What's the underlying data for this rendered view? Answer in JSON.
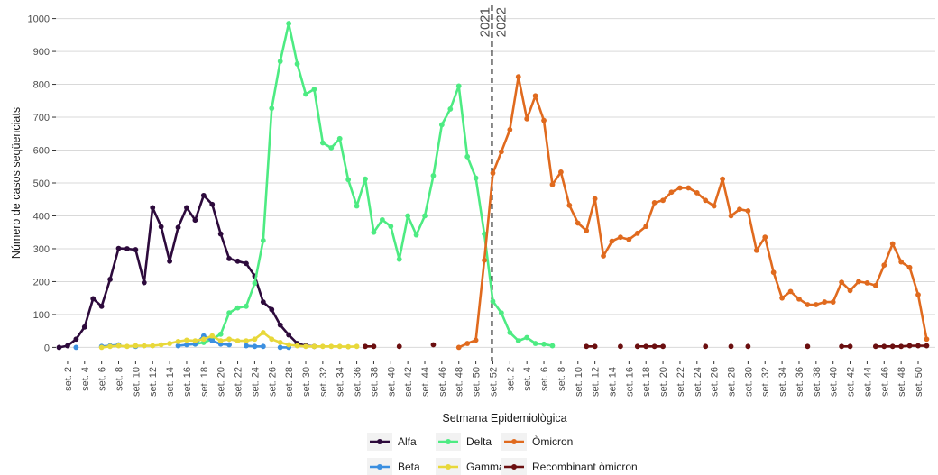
{
  "chart_data": {
    "type": "line",
    "xlabel": "Setmana Epidemiològica",
    "ylabel": "Número de casos seqüenciats",
    "ylim": [
      -40,
      1040
    ],
    "yticks": [
      0,
      100,
      200,
      300,
      400,
      500,
      600,
      700,
      800,
      900,
      1000
    ],
    "grid": true,
    "legend_position": "bottom",
    "x_categories": [
      "set. 1",
      "set. 2",
      "set. 3",
      "set. 4",
      "set. 5",
      "set. 6",
      "set. 7",
      "set. 8",
      "set. 9",
      "set. 10",
      "set. 11",
      "set. 12",
      "set. 13",
      "set. 14",
      "set. 15",
      "set. 16",
      "set. 17",
      "set. 18",
      "set. 19",
      "set. 20",
      "set. 21",
      "set. 22",
      "set. 23",
      "set. 24",
      "set. 25",
      "set. 26",
      "set. 27",
      "set. 28",
      "set. 29",
      "set. 30",
      "set. 31",
      "set. 32",
      "set. 33",
      "set. 34",
      "set. 35",
      "set. 36",
      "set. 37",
      "set. 38",
      "set. 39",
      "set. 40",
      "set. 41",
      "set. 42",
      "set. 43",
      "set. 44",
      "set. 45",
      "set. 46",
      "set. 47",
      "set. 48",
      "set. 49",
      "set. 50",
      "set. 51",
      "set. 52",
      "set. 1",
      "set. 2",
      "set. 3",
      "set. 4",
      "set. 5",
      "set. 6",
      "set. 7",
      "set. 8",
      "set. 9",
      "set. 10",
      "set. 11",
      "set. 12",
      "set. 13",
      "set. 14",
      "set. 15",
      "set. 16",
      "set. 17",
      "set. 18",
      "set. 19",
      "set. 20",
      "set. 21",
      "set. 22",
      "set. 23",
      "set. 24",
      "set. 25",
      "set. 26",
      "set. 27",
      "set. 28",
      "set. 29",
      "set. 30",
      "set. 31",
      "set. 32",
      "set. 33",
      "set. 34",
      "set. 35",
      "set. 36",
      "set. 37",
      "set. 38",
      "set. 39",
      "set. 40",
      "set. 41",
      "set. 42",
      "set. 43",
      "set. 44",
      "set. 45",
      "set. 46",
      "set. 47",
      "set. 48",
      "set. 49",
      "set. 50"
    ],
    "x_tick_labels": [
      {
        "category": 1,
        "label": "set. 2"
      },
      {
        "category": 3,
        "label": "set. 4"
      },
      {
        "category": 5,
        "label": "set. 6"
      },
      {
        "category": 7,
        "label": "set. 8"
      },
      {
        "category": 9,
        "label": "set. 10"
      },
      {
        "category": 11,
        "label": "set. 12"
      },
      {
        "category": 13,
        "label": "set. 14"
      },
      {
        "category": 15,
        "label": "set. 16"
      },
      {
        "category": 17,
        "label": "set. 18"
      },
      {
        "category": 19,
        "label": "set. 20"
      },
      {
        "category": 21,
        "label": "set. 22"
      },
      {
        "category": 23,
        "label": "set. 24"
      },
      {
        "category": 25,
        "label": "set. 26"
      },
      {
        "category": 27,
        "label": "set. 28"
      },
      {
        "category": 29,
        "label": "set. 30"
      },
      {
        "category": 31,
        "label": "set. 32"
      },
      {
        "category": 33,
        "label": "set. 34"
      },
      {
        "category": 35,
        "label": "set. 36"
      },
      {
        "category": 37,
        "label": "set. 38"
      },
      {
        "category": 39,
        "label": "set. 40"
      },
      {
        "category": 41,
        "label": "set. 42"
      },
      {
        "category": 43,
        "label": "set. 44"
      },
      {
        "category": 45,
        "label": "set. 46"
      },
      {
        "category": 47,
        "label": "set. 48"
      },
      {
        "category": 49,
        "label": "set. 50"
      },
      {
        "category": 51,
        "label": "set. 52"
      },
      {
        "category": 53,
        "label": "set. 2"
      },
      {
        "category": 55,
        "label": "set. 4"
      },
      {
        "category": 57,
        "label": "set. 6"
      },
      {
        "category": 59,
        "label": "set. 8"
      },
      {
        "category": 61,
        "label": "set. 10"
      },
      {
        "category": 63,
        "label": "set. 12"
      },
      {
        "category": 65,
        "label": "set. 14"
      },
      {
        "category": 67,
        "label": "set. 16"
      },
      {
        "category": 69,
        "label": "set. 18"
      },
      {
        "category": 71,
        "label": "set. 20"
      },
      {
        "category": 73,
        "label": "set. 22"
      },
      {
        "category": 75,
        "label": "set. 24"
      },
      {
        "category": 77,
        "label": "set. 26"
      },
      {
        "category": 79,
        "label": "set. 28"
      },
      {
        "category": 81,
        "label": "set. 30"
      },
      {
        "category": 83,
        "label": "set. 32"
      },
      {
        "category": 85,
        "label": "set. 34"
      },
      {
        "category": 87,
        "label": "set. 36"
      },
      {
        "category": 89,
        "label": "set. 38"
      },
      {
        "category": 91,
        "label": "set. 40"
      },
      {
        "category": 93,
        "label": "set. 42"
      },
      {
        "category": 95,
        "label": "set. 44"
      },
      {
        "category": 97,
        "label": "set. 46"
      },
      {
        "category": 99,
        "label": "set. 48"
      },
      {
        "category": 101,
        "label": "set. 50"
      }
    ],
    "year_divider": {
      "after_category": 51,
      "label_left": "2021",
      "label_right": "2022"
    },
    "legend_order": [
      "Alfa",
      "Delta",
      "Òmicron",
      "Beta",
      "Gamma",
      "Recombinant òmicron"
    ],
    "series": [
      {
        "name": "Alfa",
        "color": "#2d0a3c",
        "connected": true,
        "start": 0,
        "values": [
          0,
          5,
          25,
          62,
          148,
          125,
          207,
          301,
          300,
          297,
          197,
          425,
          367,
          262,
          365,
          425,
          387,
          462,
          435,
          345,
          270,
          262,
          255,
          217,
          138,
          115,
          68,
          38,
          12,
          5,
          3
        ]
      },
      {
        "name": "Delta",
        "color": "#4deb82",
        "connected": true,
        "start": 16,
        "values": [
          10,
          15,
          25,
          40,
          105,
          120,
          125,
          195,
          325,
          727,
          870,
          985,
          862,
          770,
          785,
          622,
          607,
          635,
          510,
          430,
          512,
          350,
          388,
          368,
          268,
          400,
          342,
          400,
          522,
          677,
          725,
          795,
          580,
          515,
          345,
          140,
          105,
          45,
          20,
          30,
          12,
          10,
          5
        ]
      },
      {
        "name": "Òmicron",
        "color": "#e06a1e",
        "connected": true,
        "start": 47,
        "values": [
          0,
          12,
          22,
          265,
          530,
          595,
          662,
          823,
          695,
          765,
          690,
          495,
          533,
          432,
          378,
          355,
          452,
          278,
          323,
          335,
          328,
          347,
          368,
          440,
          447,
          472,
          485,
          485,
          470,
          447,
          430,
          512,
          400,
          420,
          415,
          295,
          335,
          228,
          150,
          170,
          147,
          130,
          130,
          138,
          138,
          198,
          173,
          200,
          196,
          188,
          250,
          315,
          260,
          243,
          160,
          25
        ]
      },
      {
        "name": "Beta",
        "color": "#3b8fe0",
        "connected": false,
        "points": [
          [
            2,
            0
          ],
          [
            5,
            3
          ],
          [
            6,
            5
          ],
          [
            7,
            8
          ],
          [
            9,
            3
          ],
          [
            14,
            5
          ],
          [
            15,
            8
          ],
          [
            16,
            10
          ],
          [
            17,
            35
          ],
          [
            18,
            20
          ],
          [
            19,
            10
          ],
          [
            20,
            8
          ],
          [
            22,
            5
          ],
          [
            23,
            3
          ],
          [
            24,
            3
          ],
          [
            26,
            0
          ],
          [
            27,
            0
          ]
        ]
      },
      {
        "name": "Gamma",
        "color": "#e8d83a",
        "connected": true,
        "start": 5,
        "values": [
          0,
          3,
          5,
          3,
          5,
          5,
          5,
          8,
          12,
          18,
          22,
          20,
          25,
          35,
          20,
          25,
          20,
          20,
          25,
          45,
          25,
          15,
          8,
          5,
          3,
          3,
          3,
          3,
          3,
          2,
          3
        ]
      },
      {
        "name": "Recombinant òmicron",
        "color": "#6b0f10",
        "connected": false,
        "points": [
          [
            36,
            3
          ],
          [
            37,
            3
          ],
          [
            40,
            3
          ],
          [
            44,
            8
          ],
          [
            62,
            3
          ],
          [
            63,
            3
          ],
          [
            66,
            3
          ],
          [
            68,
            3
          ],
          [
            69,
            3
          ],
          [
            70,
            3
          ],
          [
            71,
            3
          ],
          [
            76,
            3
          ],
          [
            79,
            3
          ],
          [
            81,
            3
          ],
          [
            88,
            3
          ],
          [
            92,
            3
          ],
          [
            93,
            3
          ],
          [
            96,
            3
          ],
          [
            97,
            3
          ],
          [
            98,
            3
          ],
          [
            99,
            3
          ],
          [
            100,
            5
          ],
          [
            101,
            5
          ],
          [
            102,
            5
          ]
        ]
      }
    ]
  }
}
